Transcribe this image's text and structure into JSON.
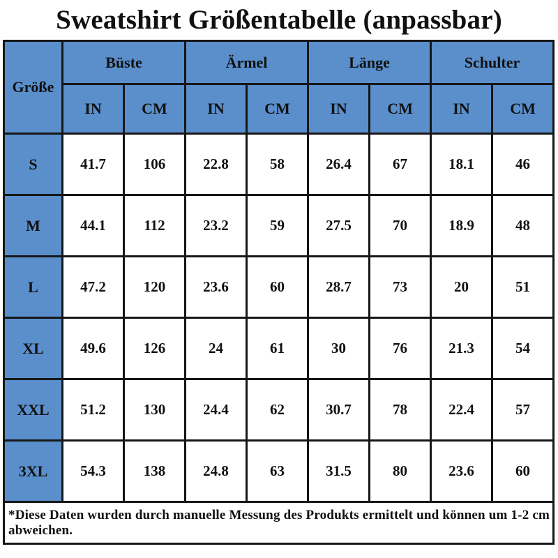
{
  "title": "Sweatshirt Größentabelle (anpassbar)",
  "table": {
    "corner_label": "Größe",
    "groups": [
      {
        "label": "Büste"
      },
      {
        "label": "Ärmel"
      },
      {
        "label": "Länge"
      },
      {
        "label": "Schulter"
      }
    ],
    "unit_headers": [
      "IN",
      "CM"
    ],
    "rows": [
      {
        "size": "S",
        "values": [
          "41.7",
          "106",
          "22.8",
          "58",
          "26.4",
          "67",
          "18.1",
          "46"
        ]
      },
      {
        "size": "M",
        "values": [
          "44.1",
          "112",
          "23.2",
          "59",
          "27.5",
          "70",
          "18.9",
          "48"
        ]
      },
      {
        "size": "L",
        "values": [
          "47.2",
          "120",
          "23.6",
          "60",
          "28.7",
          "73",
          "20",
          "51"
        ]
      },
      {
        "size": "XL",
        "values": [
          "49.6",
          "126",
          "24",
          "61",
          "30",
          "76",
          "21.3",
          "54"
        ]
      },
      {
        "size": "XXL",
        "values": [
          "51.2",
          "130",
          "24.4",
          "62",
          "30.7",
          "78",
          "22.4",
          "57"
        ]
      },
      {
        "size": "3XL",
        "values": [
          "54.3",
          "138",
          "24.8",
          "63",
          "31.5",
          "80",
          "23.6",
          "60"
        ]
      }
    ],
    "footnote": "*Diese Daten wurden durch manuelle Messung des Produkts ermittelt und können um 1-2 cm abweichen."
  },
  "colors": {
    "header_blue": "#5a8fcc",
    "border": "#161616",
    "background": "#ffffff",
    "text": "#111111"
  },
  "chart_data": {
    "type": "table",
    "title": "Sweatshirt Größentabelle (anpassbar)",
    "columns": [
      "Größe",
      "Büste IN",
      "Büste CM",
      "Ärmel IN",
      "Ärmel CM",
      "Länge IN",
      "Länge CM",
      "Schulter IN",
      "Schulter CM"
    ],
    "rows": [
      [
        "S",
        41.7,
        106,
        22.8,
        58,
        26.4,
        67,
        18.1,
        46
      ],
      [
        "M",
        44.1,
        112,
        23.2,
        59,
        27.5,
        70,
        18.9,
        48
      ],
      [
        "L",
        47.2,
        120,
        23.6,
        60,
        28.7,
        73,
        20,
        51
      ],
      [
        "XL",
        49.6,
        126,
        24,
        61,
        30,
        76,
        21.3,
        54
      ],
      [
        "XXL",
        51.2,
        130,
        24.4,
        62,
        30.7,
        78,
        22.4,
        57
      ],
      [
        "3XL",
        54.3,
        138,
        24.8,
        63,
        31.5,
        80,
        23.6,
        60
      ]
    ],
    "footnote": "*Diese Daten wurden durch manuelle Messung des Produkts ermittelt und können um 1-2 cm abweichen."
  }
}
